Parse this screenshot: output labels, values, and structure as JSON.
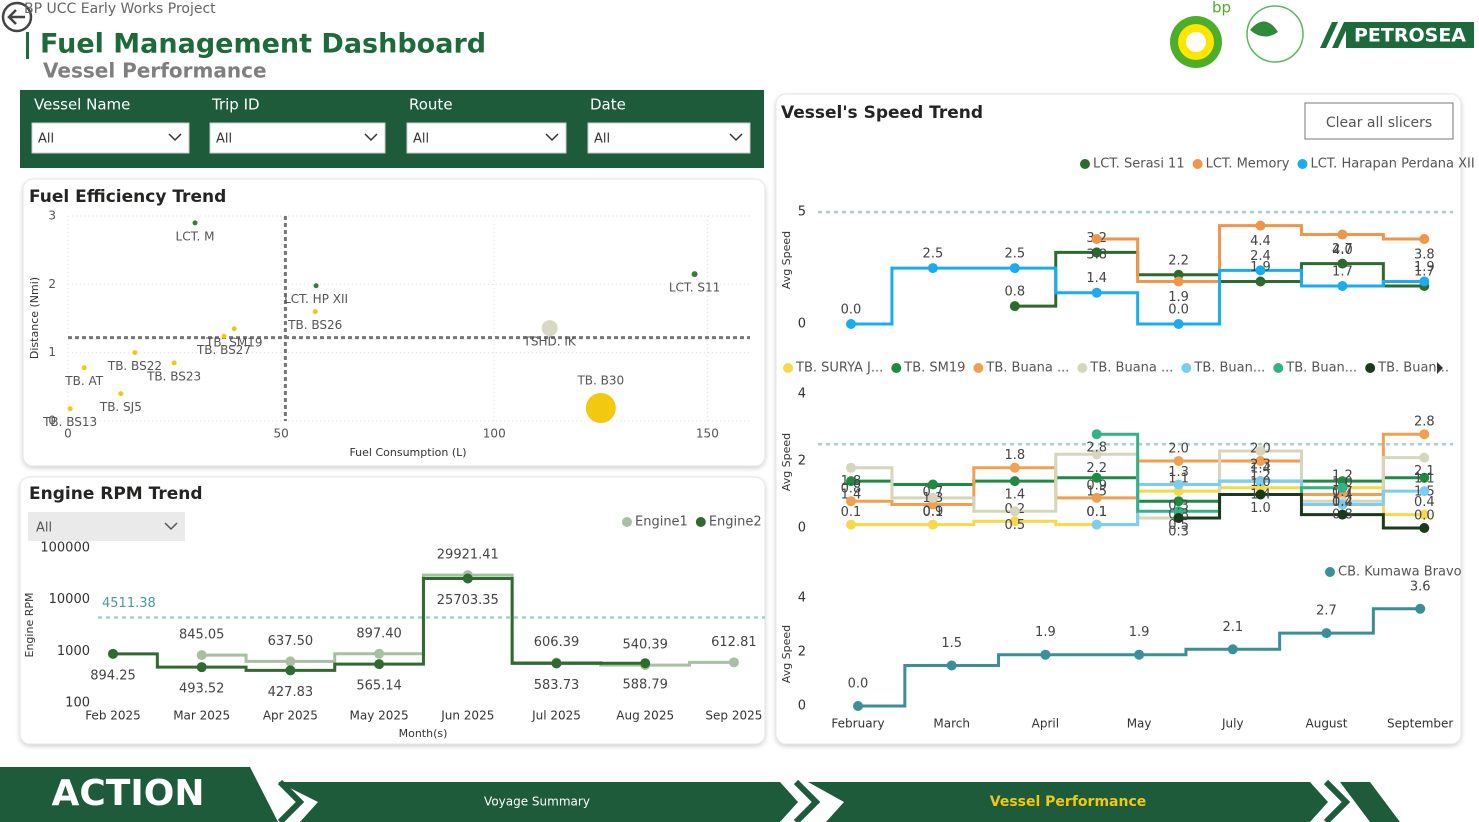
{
  "header": {
    "project": "BP UCC Early Works Project",
    "title": "Fuel Management Dashboard",
    "subtitle": "Vessel Performance",
    "logos": [
      "bp",
      "PETROSEA"
    ],
    "clear_button": "Clear all slicers"
  },
  "filters": [
    {
      "label": "Vessel Name",
      "value": "All"
    },
    {
      "label": "Trip ID",
      "value": "All"
    },
    {
      "label": "Route",
      "value": "All"
    },
    {
      "label": "Date",
      "value": "All"
    }
  ],
  "nav": {
    "logo": "ACTION",
    "tabs": [
      "Voyage Summary",
      "Vessel Performance"
    ]
  },
  "chart_data": [
    {
      "type": "scatter",
      "title": "Fuel Efficiency Trend",
      "x_label": "Fuel Consumption (L)",
      "y_label": "Distance (Nmi)",
      "xlim": [
        0,
        160
      ],
      "ylim": [
        0,
        3
      ],
      "xticks": [
        0,
        50,
        100,
        150
      ],
      "yticks": [
        0,
        1,
        2,
        3
      ],
      "grid": true,
      "x_ref": 51,
      "y_ref": 1.22,
      "labels": [
        "LCT. M",
        "LCT. HP XII",
        "TB. BS26",
        "LCT. S11",
        "TSHD. IK",
        "TB. B30",
        "TB. SM19",
        "TB. BS27",
        "TB. BS22",
        "TB. BS23",
        "TB. AT",
        "TB. SJ5",
        "TB. BS13"
      ],
      "x": [
        29.8,
        58.2,
        58,
        147,
        113,
        125,
        39,
        36.6,
        15.7,
        24.9,
        3.8,
        12.4,
        0.5
      ],
      "values": [
        2.9,
        1.98,
        1.6,
        2.15,
        1.36,
        0.19,
        1.35,
        1.24,
        1.0,
        0.85,
        0.78,
        0.4,
        0.18
      ],
      "sizes": [
        2.5,
        2.5,
        2.5,
        3,
        8,
        15,
        2.5,
        2.5,
        2.5,
        2.5,
        2.5,
        2.5,
        2.5
      ],
      "colors": [
        "#3a7a3a",
        "#3a7a3a",
        "#f2c811",
        "#3a7a3a",
        "#d9d8c4",
        "#f2c811",
        "#f2c811",
        "#f2c811",
        "#f2c811",
        "#f2c811",
        "#f2c811",
        "#f2c811",
        "#f2c811"
      ]
    },
    {
      "type": "line",
      "step": true,
      "title": "Engine RPM Trend",
      "filter": "All",
      "x_label": "Month(s)",
      "y_label": "Engine RPM",
      "log": true,
      "ylim": [
        100,
        100000
      ],
      "yticks": [
        100,
        1000,
        10000,
        100000
      ],
      "ref_line": 4511.38,
      "categories": [
        "Feb 2025",
        "Mar 2025",
        "Apr 2025",
        "May 2025",
        "Jun 2025",
        "Jul 2025",
        "Aug 2025",
        "Sep 2025"
      ],
      "series": [
        {
          "name": "Engine1",
          "color": "#a8bfa3",
          "values": [
            null,
            845.05,
            637.5,
            897.4,
            29921.41,
            606.39,
            540.39,
            612.81
          ],
          "value_labels": [
            null,
            "845.05",
            "637.50",
            "897.40",
            "29921.41",
            "606.39",
            "540.39",
            "612.81"
          ]
        },
        {
          "name": "Engine2",
          "color": "#2f6a31",
          "values": [
            894.25,
            493.52,
            427.83,
            565.14,
            25703.35,
            583.73,
            588.79,
            null
          ],
          "value_labels": [
            "894.25",
            "493.52",
            "427.83",
            "565.14",
            "25703.35",
            "583.73",
            "588.79",
            null
          ]
        }
      ]
    },
    {
      "type": "line",
      "step": true,
      "title": "Vessel's Speed Trend",
      "y_label": "Avg Speed",
      "ylim": [
        0,
        5.5
      ],
      "yticks": [
        0,
        5
      ],
      "ref_line": 5,
      "categories": [
        null,
        null,
        null,
        null,
        null,
        null,
        null,
        null
      ],
      "series": [
        {
          "name": "LCT. Serasi 11",
          "color": "#2d6a2d",
          "values": [
            null,
            null,
            0.8,
            3.2,
            2.2,
            1.9,
            2.7,
            1.7
          ],
          "value_labels": [
            null,
            null,
            "0.8",
            "3.2",
            "2.2",
            "1.9",
            "2.7",
            "1.7"
          ]
        },
        {
          "name": "LCT. Memory",
          "color": "#f0954a",
          "values": [
            null,
            null,
            null,
            3.8,
            1.9,
            4.4,
            4.0,
            3.8
          ],
          "value_labels": [
            null,
            null,
            null,
            "3.8",
            "1.9",
            "4.4",
            "4.0",
            "3.8"
          ]
        },
        {
          "name": "LCT. Harapan Perdana XII",
          "color": "#1aabf0",
          "values": [
            0.0,
            2.5,
            2.5,
            1.4,
            0.0,
            2.4,
            1.7,
            1.9
          ],
          "value_labels": [
            "0.0",
            "2.5",
            "2.5",
            "1.4",
            "0.0",
            "2.4",
            "1.7",
            "1.9"
          ]
        }
      ]
    },
    {
      "type": "line",
      "step": true,
      "y_label": "Avg Speed",
      "ylim": [
        0,
        4
      ],
      "yticks": [
        0,
        2,
        4
      ],
      "ref_line": 2.5,
      "categories": [
        null,
        null,
        null,
        null,
        null,
        null,
        null,
        null
      ],
      "series": [
        {
          "name": "TB. SURYA J...",
          "color": "#f5d94a",
          "values": [
            0.1,
            0.1,
            0.2,
            0.1,
            1.1,
            1.2,
            1.2,
            0.4
          ],
          "value_labels": [
            "0.1",
            "0.1",
            "0.2",
            "0.1",
            "1.1",
            "1.2",
            "1.2",
            "0.4"
          ]
        },
        {
          "name": "TB. SM19",
          "color": "#1e8a44",
          "values": [
            1.4,
            1.3,
            1.4,
            1.5,
            0.8,
            1.4,
            1.4,
            1.5
          ],
          "value_labels": [
            "1.4",
            "1.3",
            "1.4",
            "1.5",
            "0.8",
            "1.4",
            "1.4",
            "1.5"
          ]
        },
        {
          "name": "TB. Buana ...",
          "color": "#f0a050",
          "values": [
            0.8,
            0.7,
            1.8,
            0.9,
            2.0,
            2.0,
            1.0,
            2.8
          ],
          "value_labels": [
            "0.8",
            "0.7",
            "1.8",
            "0.9",
            "2.0",
            "2.0",
            "1.0",
            "2.8"
          ]
        },
        {
          "name": "TB. Buana ...",
          "color": "#d6d6bc",
          "values": [
            1.8,
            0.9,
            0.5,
            2.2,
            0.3,
            2.3,
            0.8,
            2.1
          ],
          "value_labels": [
            "1.8",
            "0.9",
            "0.5",
            "2.2",
            "0.3",
            "2.3",
            "0.8",
            "2.1"
          ]
        },
        {
          "name": "TB. Buan...",
          "color": "#7ccdf0",
          "values": [
            null,
            null,
            null,
            0.1,
            1.3,
            1.4,
            0.7,
            1.1
          ],
          "value_labels": [
            null,
            null,
            null,
            "0.1",
            "1.3",
            "1.4",
            "0.7",
            "1.1"
          ]
        },
        {
          "name": "TB. Buan...",
          "color": "#33b28a",
          "values": [
            null,
            null,
            null,
            2.8,
            0.5,
            1.0,
            1.2,
            null
          ],
          "value_labels": [
            null,
            null,
            null,
            "2.8",
            "0.5",
            "1.0",
            "1.2",
            null
          ]
        },
        {
          "name": "TB. Buan...",
          "color": "#1b3a1b",
          "values": [
            null,
            null,
            null,
            null,
            0.3,
            1.0,
            0.4,
            0.0
          ],
          "value_labels": [
            null,
            null,
            null,
            null,
            "0.3",
            "1.0",
            "0.4",
            "0.0"
          ]
        }
      ]
    },
    {
      "type": "line",
      "step": true,
      "y_label": "Avg Speed",
      "ylim": [
        0,
        4
      ],
      "yticks": [
        0,
        2,
        4
      ],
      "categories": [
        "February",
        "March",
        "April",
        "May",
        "July",
        "August",
        "September"
      ],
      "series": [
        {
          "name": "CB. Kumawa Bravo",
          "color": "#3a8f99",
          "values": [
            0.0,
            1.5,
            1.9,
            1.9,
            2.1,
            2.7,
            3.6
          ],
          "value_labels": [
            "0.0",
            "1.5",
            "1.9",
            "1.9",
            "2.1",
            "2.7",
            "3.6"
          ]
        }
      ]
    }
  ]
}
